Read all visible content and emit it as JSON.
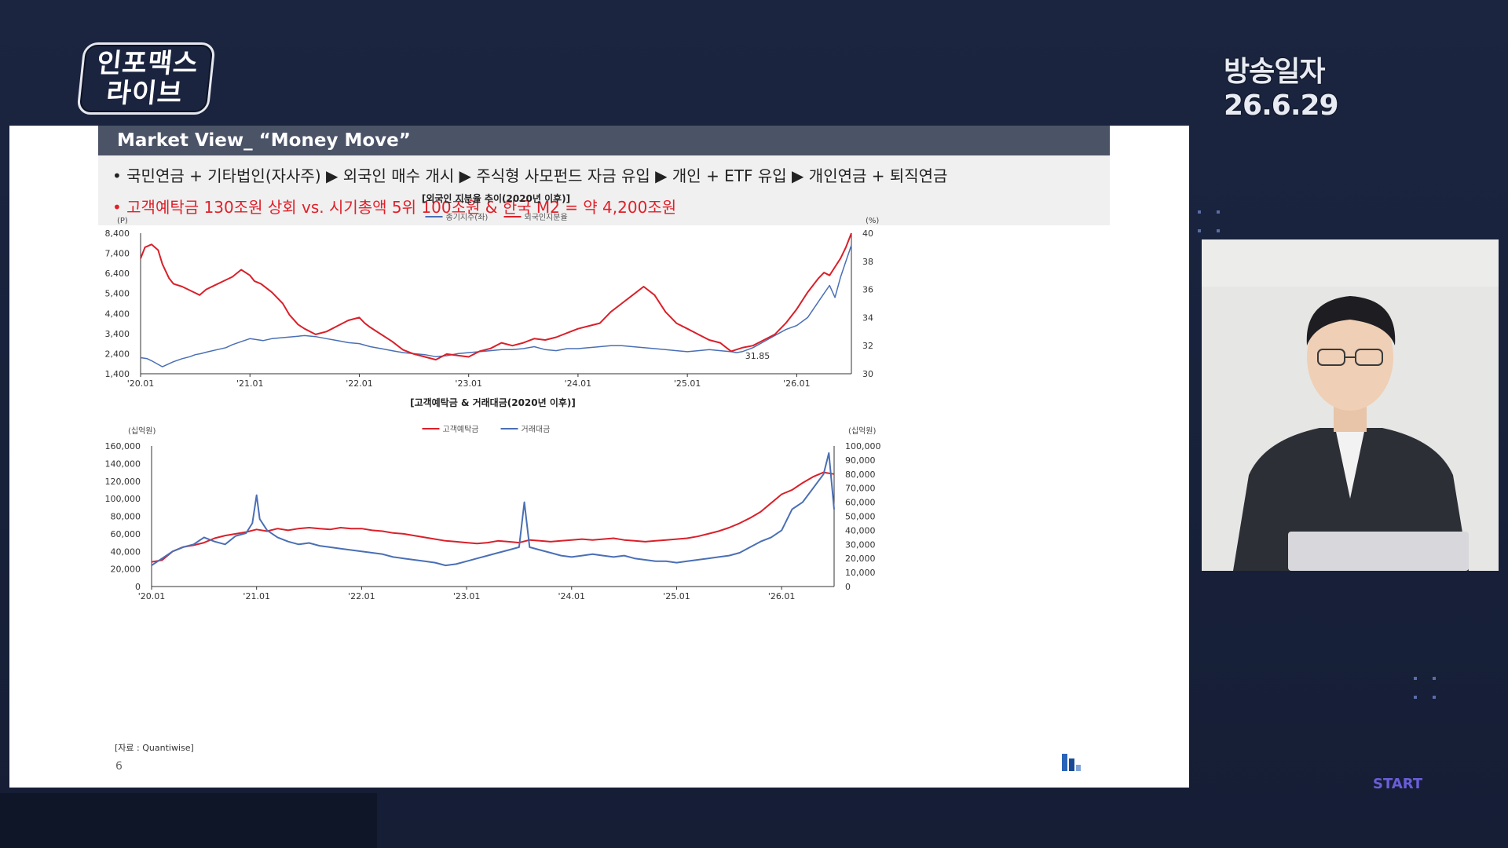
{
  "broadcast": {
    "logo_line1": "인포맥스",
    "logo_line2": "라이브",
    "date_label": "방송일자 26.6.29",
    "start_label": "START"
  },
  "slide": {
    "header": "Market View_ “Money Move”",
    "bullet1": "• 국민연금 + 기타법인(자사주) ▶ 외국인 매수 개시 ▶ 주식형 사모펀드 자금 유입 ▶ 개인 + ETF 유입 ▶ 개인연금 + 퇴직연금",
    "bullet2": "• 고객예탁금 130조원 상회 vs. 시기총액 5위 100조원 & 한국 M2 = 약 4,200조원",
    "source": "[자료 : Quantiwise]",
    "page_number": "6"
  },
  "colors": {
    "red_series": "#d9202a",
    "blue_series": "#4a6fb5",
    "header_bg": "#4b5367",
    "highlight_red": "#e0202a"
  },
  "chart_data": [
    {
      "type": "line",
      "title": "[외국인 지분율 추이(2020년 이후)]",
      "left_unit": "(P)",
      "right_unit": "(%)",
      "legend": [
        "종기지수(좌)",
        "외국인지분율"
      ],
      "x_ticks": [
        "'20.01",
        "'21.01",
        "'22.01",
        "'23.01",
        "'24.01",
        "'25.01",
        "'26.01"
      ],
      "y_left_ticks": [
        "8,400",
        "7,400",
        "6,400",
        "5,400",
        "4,400",
        "3,400",
        "2,400",
        "1,400"
      ],
      "y_right_ticks": [
        "40",
        "38",
        "36",
        "34",
        "32",
        "30"
      ],
      "y_left_range": [
        1400,
        8400
      ],
      "y_right_range": [
        30,
        40
      ],
      "annotation": "31.85",
      "series": [
        {
          "name": "종기지수(좌)",
          "axis": "left",
          "color": "#4a6fb5",
          "x": [
            0,
            0.06,
            0.1,
            0.2,
            0.3,
            0.38,
            0.45,
            0.5,
            0.55,
            0.62,
            0.7,
            0.78,
            0.84,
            0.92,
            1.0,
            1.06,
            1.12,
            1.2,
            1.3,
            1.4,
            1.5,
            1.6,
            1.7,
            1.8,
            1.9,
            2.0,
            2.1,
            2.2,
            2.3,
            2.4,
            2.5,
            2.6,
            2.7,
            2.8,
            2.9,
            3.0,
            3.1,
            3.2,
            3.3,
            3.4,
            3.5,
            3.6,
            3.7,
            3.8,
            3.9,
            4.0,
            4.1,
            4.2,
            4.3,
            4.4,
            4.5,
            4.6,
            4.7,
            4.8,
            4.9,
            5.0,
            5.1,
            5.2,
            5.3,
            5.4,
            5.45,
            5.5,
            5.6,
            5.7,
            5.8,
            5.9,
            6.0,
            6.1,
            6.2,
            6.25,
            6.3,
            6.35,
            6.4,
            6.45,
            6.5
          ],
          "y": [
            2200,
            2150,
            2050,
            1750,
            2000,
            2150,
            2250,
            2350,
            2400,
            2500,
            2600,
            2700,
            2850,
            3000,
            3150,
            3100,
            3050,
            3150,
            3200,
            3250,
            3300,
            3250,
            3150,
            3050,
            2950,
            2900,
            2750,
            2650,
            2550,
            2450,
            2400,
            2350,
            2250,
            2300,
            2400,
            2450,
            2500,
            2550,
            2600,
            2600,
            2650,
            2750,
            2600,
            2550,
            2650,
            2650,
            2700,
            2750,
            2800,
            2800,
            2750,
            2700,
            2650,
            2600,
            2550,
            2500,
            2550,
            2600,
            2550,
            2500,
            2450,
            2500,
            2700,
            3000,
            3300,
            3600,
            3800,
            4200,
            5000,
            5400,
            5800,
            5200,
            6200,
            7000,
            7800
          ]
        },
        {
          "name": "외국인지분율",
          "axis": "right",
          "color": "#d9202a",
          "x": [
            0,
            0.04,
            0.1,
            0.16,
            0.2,
            0.26,
            0.3,
            0.38,
            0.46,
            0.54,
            0.6,
            0.68,
            0.76,
            0.84,
            0.92,
            1.0,
            1.04,
            1.1,
            1.2,
            1.3,
            1.36,
            1.44,
            1.5,
            1.6,
            1.7,
            1.8,
            1.9,
            2.0,
            2.05,
            2.1,
            2.2,
            2.3,
            2.4,
            2.5,
            2.6,
            2.7,
            2.8,
            2.9,
            3.0,
            3.1,
            3.2,
            3.3,
            3.4,
            3.5,
            3.6,
            3.7,
            3.8,
            3.9,
            4.0,
            4.1,
            4.2,
            4.3,
            4.4,
            4.5,
            4.6,
            4.7,
            4.8,
            4.9,
            5.0,
            5.1,
            5.2,
            5.3,
            5.4,
            5.5,
            5.6,
            5.7,
            5.8,
            5.9,
            6.0,
            6.1,
            6.2,
            6.25,
            6.3,
            6.35,
            6.4,
            6.45,
            6.5
          ],
          "y": [
            38.2,
            39.0,
            39.2,
            38.8,
            37.8,
            36.8,
            36.4,
            36.2,
            35.9,
            35.6,
            36.0,
            36.3,
            36.6,
            36.9,
            37.4,
            37.0,
            36.6,
            36.4,
            35.8,
            35.0,
            34.2,
            33.5,
            33.2,
            32.8,
            33.0,
            33.4,
            33.8,
            34.0,
            33.6,
            33.3,
            32.8,
            32.3,
            31.7,
            31.4,
            31.2,
            31.0,
            31.4,
            31.3,
            31.2,
            31.6,
            31.8,
            32.2,
            32.0,
            32.2,
            32.5,
            32.4,
            32.6,
            32.9,
            33.2,
            33.4,
            33.6,
            34.4,
            35.0,
            35.6,
            36.2,
            35.6,
            34.4,
            33.6,
            33.2,
            32.8,
            32.4,
            32.2,
            31.6,
            31.85,
            32.0,
            32.4,
            32.8,
            33.6,
            34.6,
            35.8,
            36.8,
            37.2,
            37.0,
            37.6,
            38.2,
            39.0,
            40.0
          ]
        }
      ]
    },
    {
      "type": "line",
      "title": "[고객예탁금 & 거래대금(2020년 이후)]",
      "left_unit": "(십억원)",
      "right_unit": "(십억원)",
      "legend": [
        "고객예탁금",
        "거래대금"
      ],
      "x_ticks": [
        "'20.01",
        "'21.01",
        "'22.01",
        "'23.01",
        "'24.01",
        "'25.01",
        "'26.01"
      ],
      "y_left_ticks": [
        "160,000",
        "140,000",
        "120,000",
        "100,000",
        "80,000",
        "60,000",
        "40,000",
        "20,000",
        "0"
      ],
      "y_right_ticks": [
        "100,000",
        "90,000",
        "80,000",
        "70,000",
        "60,000",
        "50,000",
        "40,000",
        "30,000",
        "20,000",
        "10,000",
        "0"
      ],
      "y_left_range": [
        0,
        160000
      ],
      "y_right_range": [
        0,
        100000
      ],
      "series": [
        {
          "name": "고객예탁금",
          "axis": "left",
          "color": "#d9202a",
          "x": [
            0,
            0.1,
            0.2,
            0.3,
            0.4,
            0.5,
            0.6,
            0.7,
            0.8,
            0.9,
            1.0,
            1.1,
            1.2,
            1.3,
            1.4,
            1.5,
            1.6,
            1.7,
            1.8,
            1.9,
            2.0,
            2.1,
            2.2,
            2.3,
            2.4,
            2.5,
            2.6,
            2.7,
            2.8,
            2.9,
            3.0,
            3.1,
            3.2,
            3.3,
            3.4,
            3.5,
            3.6,
            3.7,
            3.8,
            3.9,
            4.0,
            4.1,
            4.2,
            4.3,
            4.4,
            4.5,
            4.6,
            4.7,
            4.8,
            4.9,
            5.0,
            5.1,
            5.2,
            5.3,
            5.4,
            5.5,
            5.6,
            5.7,
            5.8,
            5.9,
            6.0,
            6.1,
            6.2,
            6.3,
            6.4,
            6.5
          ],
          "y": [
            28000,
            30000,
            40000,
            45000,
            47000,
            50000,
            55000,
            58000,
            60000,
            62000,
            65000,
            63000,
            66000,
            64000,
            66000,
            67000,
            66000,
            65000,
            67000,
            66000,
            66000,
            64000,
            63000,
            61000,
            60000,
            58000,
            56000,
            54000,
            52000,
            51000,
            50000,
            49000,
            50000,
            52000,
            51000,
            50000,
            53000,
            52000,
            51000,
            52000,
            53000,
            54000,
            53000,
            54000,
            55000,
            53000,
            52000,
            51000,
            52000,
            53000,
            54000,
            55000,
            57000,
            60000,
            63000,
            67000,
            72000,
            78000,
            85000,
            95000,
            105000,
            110000,
            118000,
            125000,
            130000,
            128000
          ]
        },
        {
          "name": "거래대금",
          "axis": "right",
          "color": "#4a6fb5",
          "x": [
            0,
            0.1,
            0.2,
            0.3,
            0.4,
            0.5,
            0.6,
            0.7,
            0.8,
            0.9,
            0.96,
            1.0,
            1.03,
            1.1,
            1.2,
            1.3,
            1.4,
            1.5,
            1.6,
            1.7,
            1.8,
            1.9,
            2.0,
            2.1,
            2.2,
            2.3,
            2.4,
            2.5,
            2.6,
            2.7,
            2.8,
            2.9,
            3.0,
            3.1,
            3.2,
            3.3,
            3.4,
            3.5,
            3.55,
            3.6,
            3.7,
            3.8,
            3.9,
            4.0,
            4.1,
            4.2,
            4.3,
            4.4,
            4.5,
            4.6,
            4.7,
            4.8,
            4.9,
            5.0,
            5.1,
            5.2,
            5.3,
            5.4,
            5.5,
            5.6,
            5.7,
            5.8,
            5.9,
            6.0,
            6.1,
            6.2,
            6.3,
            6.4,
            6.45,
            6.5
          ],
          "y": [
            15000,
            20000,
            25000,
            28000,
            30000,
            35000,
            32000,
            30000,
            36000,
            38000,
            45000,
            65000,
            48000,
            40000,
            35000,
            32000,
            30000,
            31000,
            29000,
            28000,
            27000,
            26000,
            25000,
            24000,
            23000,
            21000,
            20000,
            19000,
            18000,
            17000,
            15000,
            16000,
            18000,
            20000,
            22000,
            24000,
            26000,
            28000,
            60000,
            28000,
            26000,
            24000,
            22000,
            21000,
            22000,
            23000,
            22000,
            21000,
            22000,
            20000,
            19000,
            18000,
            18000,
            17000,
            18000,
            19000,
            20000,
            21000,
            22000,
            24000,
            28000,
            32000,
            35000,
            40000,
            55000,
            60000,
            70000,
            80000,
            95000,
            55000
          ]
        }
      ]
    }
  ]
}
